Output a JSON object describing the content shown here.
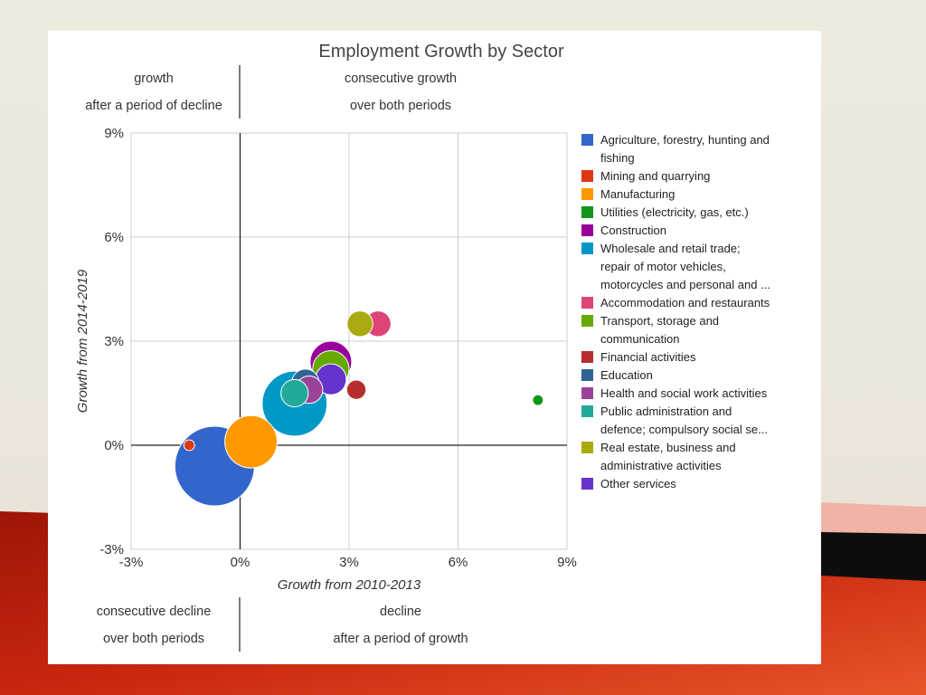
{
  "chart_data": {
    "type": "bubble",
    "title": "Employment Growth by Sector",
    "xlabel": "Growth from 2010-2013",
    "ylabel": "Growth from 2014-2019",
    "xlim": [
      -3,
      9
    ],
    "ylim": [
      -3,
      9
    ],
    "x_ticks": [
      "-3%",
      "0%",
      "3%",
      "6%",
      "9%"
    ],
    "y_ticks": [
      "-3%",
      "0%",
      "3%",
      "6%",
      "9%"
    ],
    "tick_values": [
      -3,
      0,
      3,
      6,
      9
    ],
    "quadrant_labels": {
      "top_left": [
        "growth",
        "after a period of decline"
      ],
      "top_right": [
        "consecutive growth",
        "over both periods"
      ],
      "bottom_left": [
        "consecutive decline",
        "over both periods"
      ],
      "bottom_right": [
        "decline",
        "after a period of growth"
      ]
    },
    "series": [
      {
        "name": "Agriculture, forestry, hunting and fishing",
        "lines": [
          "Agriculture, forestry, hunting and",
          "fishing"
        ],
        "color": "#3366cc",
        "x": -0.7,
        "y": -0.6,
        "size": 2200
      },
      {
        "name": "Mining and quarrying",
        "lines": [
          "Mining and quarrying"
        ],
        "color": "#dc3912",
        "x": -1.4,
        "y": 0.0,
        "size": 40
      },
      {
        "name": "Manufacturing",
        "lines": [
          "Manufacturing"
        ],
        "color": "#ff9900",
        "x": 0.3,
        "y": 0.1,
        "size": 950
      },
      {
        "name": "Utilities (electricity, gas, etc.)",
        "lines": [
          "Utilities (electricity, gas, etc.)"
        ],
        "color": "#109618",
        "x": 8.2,
        "y": 1.3,
        "size": 40
      },
      {
        "name": "Construction",
        "lines": [
          "Construction"
        ],
        "color": "#990099",
        "x": 2.5,
        "y": 2.4,
        "size": 600
      },
      {
        "name": "Wholesale and retail trade; repair of motor vehicles, motorcycles and personal and ...",
        "lines": [
          "Wholesale and retail trade;",
          "repair of motor vehicles,",
          "motorcycles and personal and ..."
        ],
        "color": "#0099c6",
        "x": 1.5,
        "y": 1.2,
        "size": 1460
      },
      {
        "name": "Accommodation and restaurants",
        "lines": [
          "Accommodation and restaurants"
        ],
        "color": "#dd4477",
        "x": 3.8,
        "y": 3.5,
        "size": 230
      },
      {
        "name": "Transport, storage and communication",
        "lines": [
          "Transport, storage and",
          "communication"
        ],
        "color": "#66aa00",
        "x": 2.5,
        "y": 2.2,
        "size": 460
      },
      {
        "name": "Financial activities",
        "lines": [
          "Financial activities"
        ],
        "color": "#b82e2e",
        "x": 3.2,
        "y": 1.6,
        "size": 130
      },
      {
        "name": "Education",
        "lines": [
          "Education"
        ],
        "color": "#316395",
        "x": 1.8,
        "y": 1.8,
        "size": 260
      },
      {
        "name": "Health and social work activities",
        "lines": [
          "Health and social work activities"
        ],
        "color": "#994499",
        "x": 1.9,
        "y": 1.6,
        "size": 260
      },
      {
        "name": "Public administration and defence; compulsory social se...",
        "lines": [
          "Public administration and",
          "defence; compulsory social se..."
        ],
        "color": "#22aa99",
        "x": 1.5,
        "y": 1.5,
        "size": 260
      },
      {
        "name": "Real estate, business and administrative activities",
        "lines": [
          "Real estate, business and",
          "administrative activities"
        ],
        "color": "#aaaa11",
        "x": 3.3,
        "y": 3.5,
        "size": 230
      },
      {
        "name": "Other services",
        "lines": [
          "Other services"
        ],
        "color": "#6633cc",
        "x": 2.5,
        "y": 1.9,
        "size": 330
      }
    ],
    "legend_position": "right"
  }
}
